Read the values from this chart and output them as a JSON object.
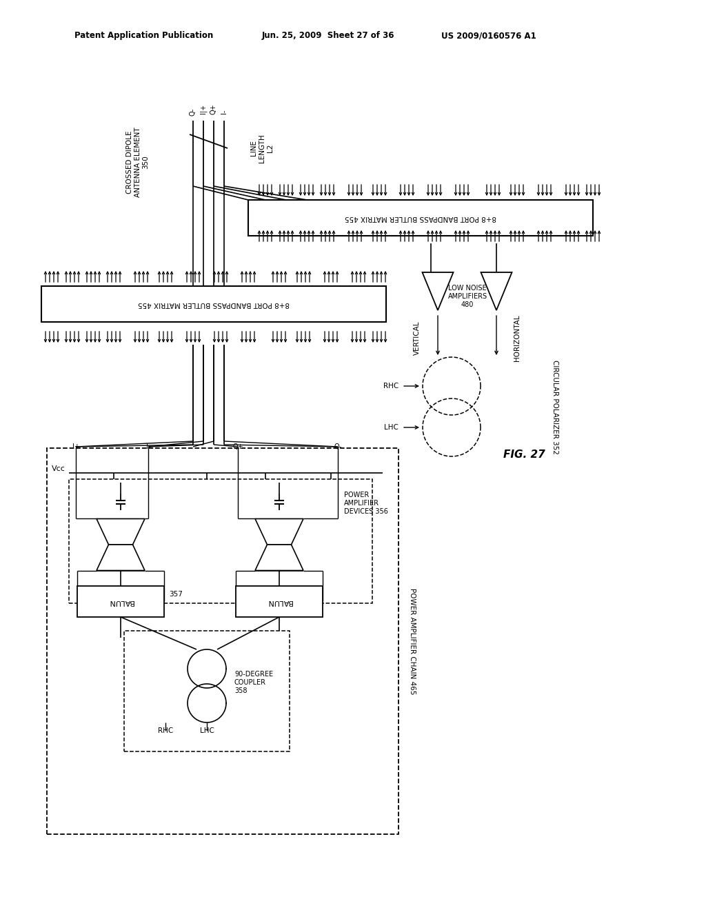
{
  "bg_color": "#ffffff",
  "line_color": "#000000",
  "header_left": "Patent Application Publication",
  "header_mid": "Jun. 25, 2009  Sheet 27 of 36",
  "header_right": "US 2009/0160576 A1",
  "fig_label": "FIG. 27"
}
